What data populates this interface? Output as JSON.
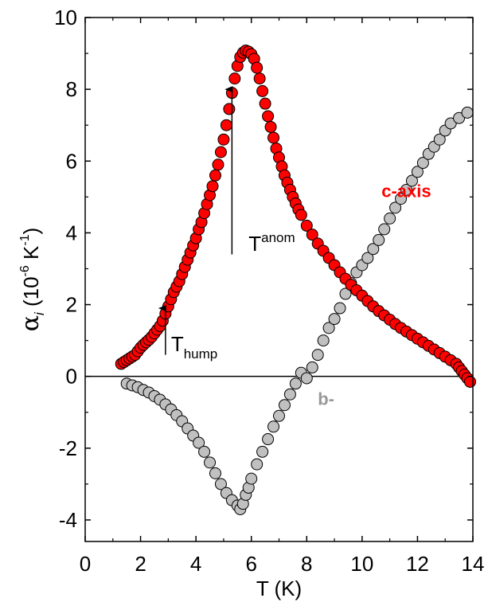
{
  "chart_data": {
    "type": "scatter",
    "xlabel": "T (K)",
    "ylabel": {
      "alpha": "α",
      "sub": "i",
      "rest": " (10",
      "exp1": "-6",
      "unit": " K",
      "exp2": "-1",
      "close": ")"
    },
    "xlim": [
      0,
      14
    ],
    "ylim": [
      -4.6,
      10
    ],
    "xticks": [
      0,
      2,
      4,
      6,
      8,
      10,
      12,
      14
    ],
    "yticks": [
      -4,
      -2,
      0,
      2,
      4,
      6,
      8,
      10
    ],
    "grid": false,
    "zero_line": true,
    "colors": {
      "c_axis": "#ff0000",
      "b_axis": "#c0c0c0",
      "marker_edge": "#000000",
      "b_label": "#999999"
    },
    "series": [
      {
        "name": "c-axis",
        "color": "#ff0000",
        "points": [
          [
            1.3,
            0.35
          ],
          [
            1.4,
            0.4
          ],
          [
            1.5,
            0.45
          ],
          [
            1.6,
            0.5
          ],
          [
            1.7,
            0.55
          ],
          [
            1.8,
            0.6
          ],
          [
            1.9,
            0.7
          ],
          [
            2.0,
            0.8
          ],
          [
            2.1,
            0.88
          ],
          [
            2.2,
            0.95
          ],
          [
            2.3,
            1.02
          ],
          [
            2.4,
            1.1
          ],
          [
            2.5,
            1.2
          ],
          [
            2.6,
            1.3
          ],
          [
            2.7,
            1.4
          ],
          [
            2.8,
            1.55
          ],
          [
            2.9,
            1.75
          ],
          [
            3.0,
            1.95
          ],
          [
            3.1,
            2.15
          ],
          [
            3.2,
            2.35
          ],
          [
            3.3,
            2.5
          ],
          [
            3.4,
            2.65
          ],
          [
            3.5,
            2.85
          ],
          [
            3.6,
            3.05
          ],
          [
            3.7,
            3.25
          ],
          [
            3.8,
            3.45
          ],
          [
            3.9,
            3.65
          ],
          [
            4.0,
            3.85
          ],
          [
            4.1,
            4.1
          ],
          [
            4.2,
            4.3
          ],
          [
            4.3,
            4.55
          ],
          [
            4.4,
            4.8
          ],
          [
            4.5,
            5.05
          ],
          [
            4.6,
            5.3
          ],
          [
            4.7,
            5.6
          ],
          [
            4.8,
            5.9
          ],
          [
            4.9,
            6.25
          ],
          [
            5.0,
            6.6
          ],
          [
            5.1,
            7.0
          ],
          [
            5.2,
            7.45
          ],
          [
            5.3,
            7.9
          ],
          [
            5.4,
            8.3
          ],
          [
            5.5,
            8.65
          ],
          [
            5.6,
            8.9
          ],
          [
            5.7,
            9.02
          ],
          [
            5.8,
            9.08
          ],
          [
            5.9,
            9.05
          ],
          [
            6.0,
            8.98
          ],
          [
            6.1,
            8.85
          ],
          [
            6.2,
            8.6
          ],
          [
            6.3,
            8.3
          ],
          [
            6.4,
            7.95
          ],
          [
            6.5,
            7.6
          ],
          [
            6.6,
            7.25
          ],
          [
            6.7,
            6.95
          ],
          [
            6.8,
            6.65
          ],
          [
            6.9,
            6.35
          ],
          [
            7.0,
            6.1
          ],
          [
            7.1,
            5.85
          ],
          [
            7.2,
            5.6
          ],
          [
            7.3,
            5.4
          ],
          [
            7.4,
            5.2
          ],
          [
            7.5,
            5.0
          ],
          [
            7.6,
            4.82
          ],
          [
            7.7,
            4.65
          ],
          [
            7.8,
            4.5
          ],
          [
            8.0,
            4.2
          ],
          [
            8.2,
            3.95
          ],
          [
            8.4,
            3.7
          ],
          [
            8.6,
            3.5
          ],
          [
            8.8,
            3.3
          ],
          [
            9.0,
            3.1
          ],
          [
            9.2,
            2.9
          ],
          [
            9.4,
            2.72
          ],
          [
            9.6,
            2.55
          ],
          [
            9.8,
            2.4
          ],
          [
            10.0,
            2.25
          ],
          [
            10.2,
            2.1
          ],
          [
            10.4,
            1.95
          ],
          [
            10.6,
            1.82
          ],
          [
            10.8,
            1.7
          ],
          [
            11.0,
            1.58
          ],
          [
            11.2,
            1.46
          ],
          [
            11.4,
            1.35
          ],
          [
            11.6,
            1.25
          ],
          [
            11.8,
            1.15
          ],
          [
            12.0,
            1.05
          ],
          [
            12.2,
            0.95
          ],
          [
            12.4,
            0.85
          ],
          [
            12.6,
            0.75
          ],
          [
            12.8,
            0.65
          ],
          [
            13.0,
            0.55
          ],
          [
            13.2,
            0.45
          ],
          [
            13.4,
            0.35
          ],
          [
            13.5,
            0.25
          ],
          [
            13.6,
            0.15
          ],
          [
            13.7,
            0.05
          ],
          [
            13.8,
            -0.05
          ],
          [
            13.9,
            -0.15
          ]
        ]
      },
      {
        "name": "b-",
        "color": "#c0c0c0",
        "points": [
          [
            1.5,
            -0.2
          ],
          [
            1.7,
            -0.25
          ],
          [
            1.9,
            -0.3
          ],
          [
            2.1,
            -0.38
          ],
          [
            2.3,
            -0.45
          ],
          [
            2.5,
            -0.55
          ],
          [
            2.7,
            -0.65
          ],
          [
            2.9,
            -0.78
          ],
          [
            3.1,
            -0.92
          ],
          [
            3.3,
            -1.08
          ],
          [
            3.5,
            -1.25
          ],
          [
            3.7,
            -1.45
          ],
          [
            3.9,
            -1.65
          ],
          [
            4.1,
            -1.85
          ],
          [
            4.3,
            -2.1
          ],
          [
            4.5,
            -2.4
          ],
          [
            4.7,
            -2.7
          ],
          [
            4.9,
            -3.0
          ],
          [
            5.1,
            -3.25
          ],
          [
            5.3,
            -3.45
          ],
          [
            5.5,
            -3.6
          ],
          [
            5.6,
            -3.7
          ],
          [
            5.7,
            -3.55
          ],
          [
            5.8,
            -3.3
          ],
          [
            5.9,
            -3.1
          ],
          [
            6.0,
            -2.85
          ],
          [
            6.2,
            -2.45
          ],
          [
            6.4,
            -2.1
          ],
          [
            6.6,
            -1.75
          ],
          [
            6.8,
            -1.4
          ],
          [
            7.0,
            -1.1
          ],
          [
            7.2,
            -0.8
          ],
          [
            7.4,
            -0.5
          ],
          [
            7.6,
            -0.2
          ],
          [
            7.8,
            0.1
          ],
          [
            8.0,
            -0.05
          ],
          [
            8.2,
            0.25
          ],
          [
            8.4,
            0.6
          ],
          [
            8.6,
            1.0
          ],
          [
            8.8,
            1.35
          ],
          [
            9.0,
            1.6
          ],
          [
            9.2,
            1.9
          ],
          [
            9.4,
            2.3
          ],
          [
            9.6,
            2.6
          ],
          [
            9.8,
            2.9
          ],
          [
            10.0,
            3.1
          ],
          [
            10.2,
            3.3
          ],
          [
            10.4,
            3.55
          ],
          [
            10.6,
            3.8
          ],
          [
            10.8,
            4.1
          ],
          [
            11.0,
            4.4
          ],
          [
            11.2,
            4.7
          ],
          [
            11.4,
            4.95
          ],
          [
            11.6,
            5.2
          ],
          [
            11.8,
            5.45
          ],
          [
            12.0,
            5.7
          ],
          [
            12.2,
            5.95
          ],
          [
            12.4,
            6.2
          ],
          [
            12.6,
            6.4
          ],
          [
            12.8,
            6.6
          ],
          [
            13.0,
            6.85
          ],
          [
            13.2,
            7.05
          ],
          [
            13.5,
            7.2
          ],
          [
            13.8,
            7.35
          ]
        ]
      }
    ],
    "series_labels": [
      {
        "text": "c-axis",
        "x": 10.7,
        "y": 5.0
      },
      {
        "text": "b-",
        "x": 8.4,
        "y": -0.8
      }
    ],
    "annotations": [
      {
        "main": "T",
        "sup": "anom",
        "sub": "",
        "x": 5.9,
        "y": 3.5,
        "arrow_from": [
          5.3,
          3.4
        ],
        "arrow_to": [
          5.3,
          8.0
        ]
      },
      {
        "main": "T",
        "sup": "",
        "sub": "hump",
        "x": 3.1,
        "y": 0.7,
        "arrow_from": [
          2.9,
          0.6
        ],
        "arrow_to": [
          2.9,
          1.9
        ]
      }
    ]
  }
}
